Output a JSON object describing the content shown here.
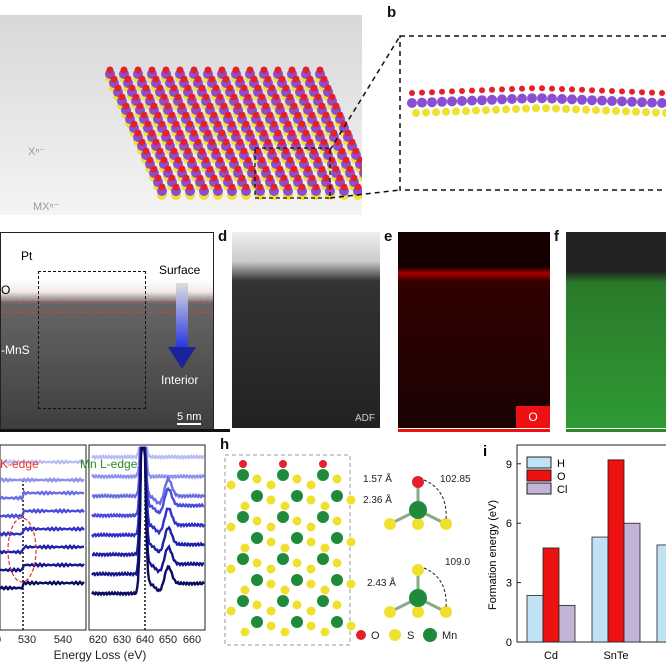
{
  "panels": {
    "a": {
      "labels": [
        "Xⁿ⁻",
        "MXⁿ⁻"
      ]
    },
    "b": {
      "label": "b"
    },
    "c": {
      "pt": "Pt",
      "o": "O",
      "mns": "-MnS",
      "surface": "Surface",
      "interior": "Interior",
      "scale": "5 nm"
    },
    "d": {
      "label": "d",
      "tag": "ADF"
    },
    "e": {
      "label": "e",
      "tag": "O"
    },
    "f": {
      "label": "f"
    },
    "g": {
      "o_edge": "K-edge",
      "mn_edge": "Mn L-edge",
      "xlabel": "Energy Loss (eV)",
      "ticks_left": [
        "0",
        "530",
        "540"
      ],
      "ticks_right": [
        "620",
        "630",
        "640",
        "650",
        "660"
      ]
    },
    "h": {
      "label": "h",
      "d1": "1.57 Å",
      "d2": "2.36 Å",
      "a1": "102.85°",
      "a2": "109.02°",
      "d3": "2.43 Å",
      "legend": [
        "O",
        "S",
        "Mn"
      ]
    }
  },
  "colors": {
    "O": "#e5202a",
    "S": "#f0e030",
    "Mn": "#1f8a3a",
    "M": "#8a4fd0"
  },
  "chart_data": {
    "type": "bar",
    "label": "i",
    "categories": [
      "Cd",
      "SnTe",
      ""
    ],
    "series": [
      {
        "name": "H",
        "color": "#bfe3f5",
        "values": [
          2.35,
          5.3,
          4.9
        ]
      },
      {
        "name": "O",
        "color": "#ee1111",
        "values": [
          4.75,
          9.2,
          null
        ]
      },
      {
        "name": "Cl",
        "color": "#c3b3d6",
        "values": [
          1.85,
          6.0,
          null
        ]
      }
    ],
    "ylabel": "Formation energy (eV)",
    "yticks": [
      "0",
      "3",
      "6",
      "9"
    ],
    "ylim": [
      0,
      10
    ]
  }
}
